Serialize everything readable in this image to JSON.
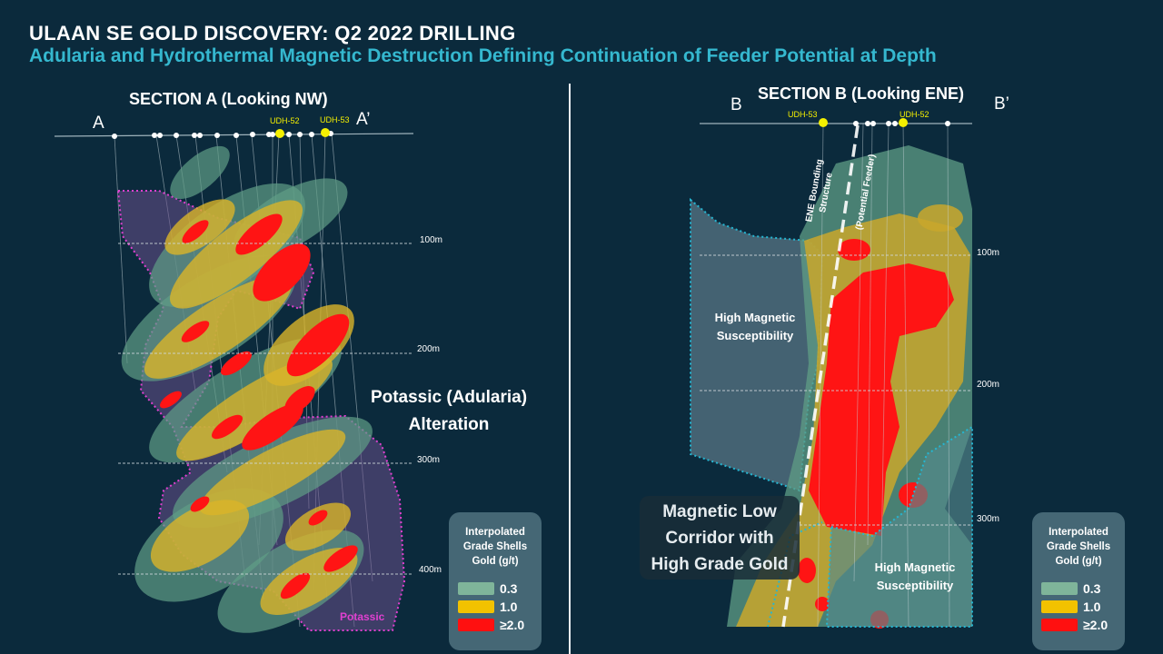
{
  "header": {
    "title": "ULAAN SE GOLD DISCOVERY:  Q2 2022 DRILLING",
    "subtitle": "Adularia and Hydrothermal Magnetic Destruction Defining Continuation of Feeder Potential at Depth"
  },
  "section_a": {
    "title": "SECTION A (Looking NW)",
    "end_left": "A",
    "end_right": "A’",
    "holes": [
      "UDH-52",
      "UDH-53"
    ],
    "depths": [
      "100m",
      "200m",
      "300m",
      "400m"
    ],
    "alteration_label": "Potassic (Adularia) Alteration",
    "alteration_line1": "Potassic (Adularia)",
    "alteration_line2": "Alteration",
    "potassic_tag": "Potassic"
  },
  "section_b": {
    "title": "SECTION B (Looking ENE)",
    "end_left": "B",
    "end_right": "B’",
    "holes": [
      "UDH-53",
      "UDH-52"
    ],
    "depths": [
      "100m",
      "200m",
      "300m"
    ],
    "structure_label_1": "ENE Bounding",
    "structure_label_2": "Structure",
    "feeder_label": "(Potential Feeder)",
    "high_mag_upper_1": "High Magnetic",
    "high_mag_upper_2": "Susceptibility",
    "high_mag_lower_1": "High Magnetic",
    "high_mag_lower_2": "Susceptibility",
    "magnetic_low_1": "Magnetic Low",
    "magnetic_low_2": "Corridor with",
    "magnetic_low_3": "High Grade Gold"
  },
  "legend": {
    "title_1": "Interpolated",
    "title_2": "Grade Shells",
    "title_3": "Gold (g/t)",
    "items": [
      {
        "label": "0.3",
        "color": "#7fb59a"
      },
      {
        "label": "1.0",
        "color": "#f2c200"
      },
      {
        "label": "≥2.0",
        "color": "#ff1010"
      }
    ]
  },
  "colors": {
    "background": "#0b2a3c",
    "subtitle": "#35b8cf",
    "potassic_outline": "#e040d0",
    "magnetic_outline": "#25b6d2",
    "high_grade": "#ff1010",
    "mid_grade": "#f2c200",
    "low_grade": "#7fb59a"
  }
}
